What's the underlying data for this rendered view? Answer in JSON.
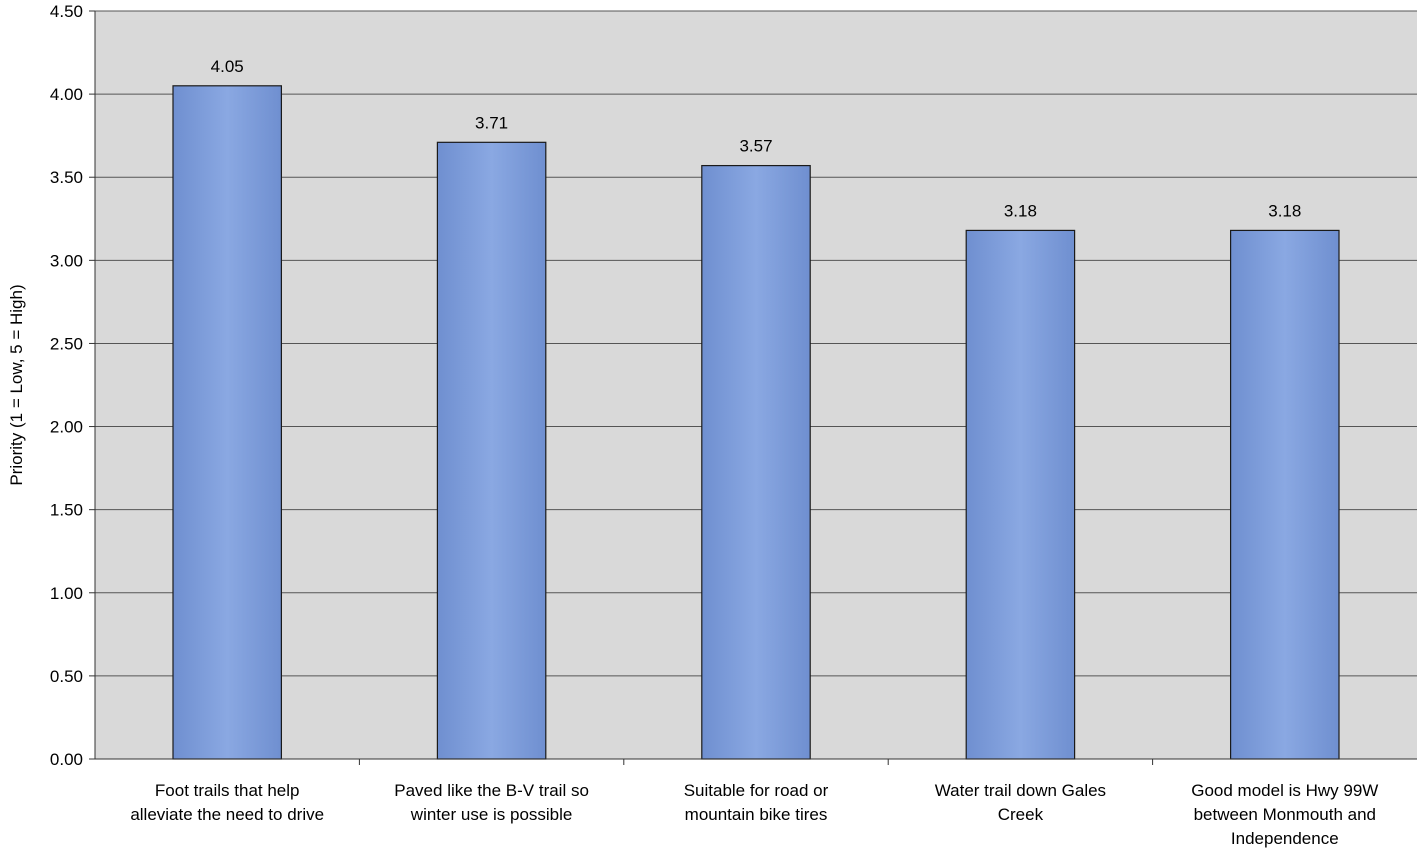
{
  "chart_data": {
    "type": "bar",
    "title": "",
    "xlabel": "",
    "ylabel": "Priority (1 = Low, 5 = High)",
    "ylim": [
      0,
      4.5
    ],
    "ytick_step": 0.5,
    "grid": true,
    "categories": [
      [
        "Foot trails that help",
        "alleviate the need to drive"
      ],
      [
        "Paved like the B-V trail so",
        "winter use is possible"
      ],
      [
        "Suitable for road or",
        "mountain bike tires"
      ],
      [
        "Water trail down Gales",
        "Creek"
      ],
      [
        "Good model is Hwy 99W",
        "between Monmouth and",
        "Independence"
      ]
    ],
    "values": [
      4.05,
      3.71,
      3.57,
      3.18,
      3.18
    ],
    "data_labels": [
      "4.05",
      "3.71",
      "3.57",
      "3.18",
      "3.18"
    ],
    "yticks": [
      "0.00",
      "0.50",
      "1.00",
      "1.50",
      "2.00",
      "2.50",
      "3.00",
      "3.50",
      "4.00",
      "4.50"
    ],
    "colors": {
      "plot_background": "#d9d9d9",
      "bar_fill": "#7f9fdb",
      "bar_stroke": "#1a1a1a",
      "grid": "#555555"
    }
  }
}
